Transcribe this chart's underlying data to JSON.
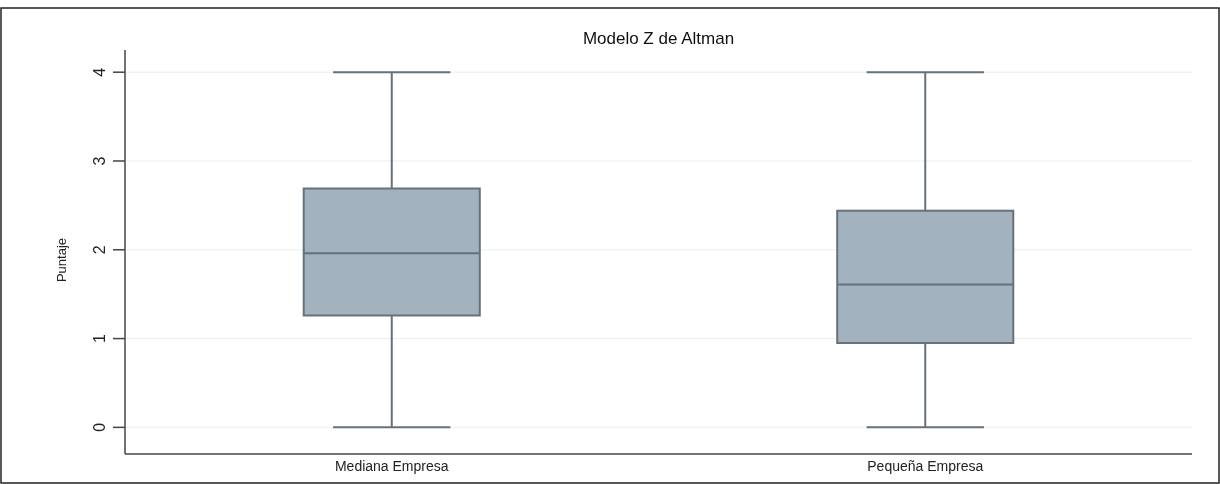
{
  "chart_data": {
    "type": "box",
    "title": "Modelo Z de Altman",
    "ylabel": "Puntaje",
    "categories": [
      "Mediana Empresa",
      "Pequeña Empresa"
    ],
    "series": [
      {
        "color": "#a2b3bf",
        "boxes": [
          {
            "low": 0,
            "q1": 1.26,
            "median": 1.96,
            "q3": 2.69,
            "high": 4
          },
          {
            "low": 0,
            "q1": 0.95,
            "median": 1.61,
            "q3": 2.44,
            "high": 4
          }
        ]
      }
    ],
    "ylim": [
      -0.3,
      4.25
    ],
    "yticks": [
      0,
      1,
      2,
      3,
      4
    ],
    "grid": "y"
  }
}
